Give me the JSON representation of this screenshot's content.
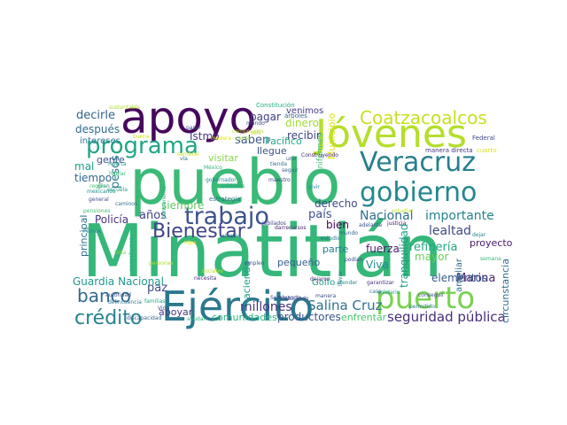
{
  "background_color": "#ffffff",
  "palette_name": "viridis",
  "words": [
    {
      "text": "Minatitlán",
      "color": "#35b779"
    },
    {
      "text": "pueblo",
      "color": "#3aba76"
    },
    {
      "text": "apoyo",
      "color": "#46085c"
    },
    {
      "text": "Jóvenes",
      "color": "#b5de2b"
    },
    {
      "text": "Ejército",
      "color": "#2a788e"
    },
    {
      "text": "puerto",
      "color": "#7ad151"
    },
    {
      "text": "programa",
      "color": "#21a585"
    },
    {
      "text": "Veracruz",
      "color": "#277f8e"
    },
    {
      "text": "gobierno",
      "color": "#24878e"
    },
    {
      "text": "Coatzacoalcos",
      "color": "#c8e020"
    },
    {
      "text": "trabajo",
      "color": "#3b528b"
    },
    {
      "text": "Bienestar",
      "color": "#414487"
    },
    {
      "text": "banco",
      "color": "#31688e"
    },
    {
      "text": "crédito",
      "color": "#26828e"
    },
    {
      "text": "seguridad pública",
      "color": "#472c7a"
    },
    {
      "text": "millones",
      "color": "#46337f"
    },
    {
      "text": "Salina Cruz",
      "color": "#2c728e"
    },
    {
      "text": "Guardia Nacional",
      "color": "#1f988b"
    },
    {
      "text": "Nacional",
      "color": "#2d708e"
    },
    {
      "text": "importante",
      "color": "#25848e"
    },
    {
      "text": "lealtad",
      "color": "#3e4a89"
    },
    {
      "text": "refinería",
      "color": "#22a884"
    },
    {
      "text": "Marina",
      "color": "#482677"
    },
    {
      "text": "pagar",
      "color": "#424086"
    },
    {
      "text": "saben",
      "color": "#38588c"
    },
    {
      "text": "recibir",
      "color": "#3f4788"
    },
    {
      "text": "venimos",
      "color": "#443983"
    },
    {
      "text": "Istmo",
      "color": "#453882"
    },
    {
      "text": "decirle",
      "color": "#33638d"
    },
    {
      "text": "después",
      "color": "#2f6c8e"
    },
    {
      "text": "intereses",
      "color": "#297b8e"
    },
    {
      "text": "gente",
      "color": "#3d4d8a"
    },
    {
      "text": "tiempo",
      "color": "#31678e"
    },
    {
      "text": "pesos",
      "color": "#287c8e"
    },
    {
      "text": "mal",
      "color": "#1fa088"
    },
    {
      "text": "siempre",
      "color": "#5ec962"
    },
    {
      "text": "Policía",
      "color": "#46327e"
    },
    {
      "text": "años",
      "color": "#414287"
    },
    {
      "text": "país",
      "color": "#3b518b"
    },
    {
      "text": "bien",
      "color": "#440154"
    },
    {
      "text": "derecho",
      "color": "#3e4989"
    },
    {
      "text": "proyecto",
      "color": "#48186a"
    },
    {
      "text": "principal",
      "color": "#2c718e"
    },
    {
      "text": "paz",
      "color": "#3d4e8a"
    },
    {
      "text": "apoyar",
      "color": "#443a83"
    },
    {
      "text": "comunidades",
      "color": "#2ab07f"
    },
    {
      "text": "productores",
      "color": "#39568c"
    },
    {
      "text": "enfrentar",
      "color": "#4ec36b"
    },
    {
      "text": "pequeño",
      "color": "#355f8d"
    },
    {
      "text": "Viva",
      "color": "#23898e"
    },
    {
      "text": "parte",
      "color": "#26818e"
    },
    {
      "text": "elementos",
      "color": "#38598c"
    },
    {
      "text": "circunstancia",
      "color": "#2d718e"
    },
    {
      "text": "ampliar",
      "color": "#2e6f8e"
    },
    {
      "text": "mayor",
      "color": "#6ccd5a"
    },
    {
      "text": "fuerza",
      "color": "#481d6f"
    },
    {
      "text": "tranquilidad",
      "color": "#1e9b8a"
    },
    {
      "text": "Golfo",
      "color": "#1fa287"
    },
    {
      "text": "visitar",
      "color": "#86d549"
    },
    {
      "text": "llegue",
      "color": "#3b528b"
    },
    {
      "text": "dinero",
      "color": "#a2da37"
    },
    {
      "text": "Pacífico",
      "color": "#21a685"
    },
    {
      "text": "haciendo",
      "color": "#1e9c89"
    },
    {
      "text": "Municipio",
      "color": "#dde318"
    },
    {
      "text": "uniformes",
      "color": "#3fbc73"
    },
    {
      "text": "Federal",
      "color": "#3f4788"
    },
    {
      "text": "manera directa",
      "color": "#453781"
    },
    {
      "text": "cuarto",
      "color": "#d8e219"
    },
    {
      "text": "estrategia",
      "color": "#2d708e"
    },
    {
      "text": "mando",
      "color": "#3c4f8a"
    },
    {
      "text": "canto",
      "color": "#9bd93c"
    },
    {
      "text": "seis",
      "color": "#b8de29"
    },
    {
      "text": "árboles",
      "color": "#355f8d"
    },
    {
      "text": "Construyendo",
      "color": "#482475"
    },
    {
      "text": "Constitución",
      "color": "#25ac82"
    },
    {
      "text": "sustentable",
      "color": "#addc30"
    },
    {
      "text": "campesinos",
      "color": "#bddf26"
    },
    {
      "text": "madera",
      "color": "#dae319"
    },
    {
      "text": "sembrar",
      "color": "#cae11f"
    },
    {
      "text": "Vida",
      "color": "#3a538b"
    },
    {
      "text": "familias",
      "color": "#22a785"
    },
    {
      "text": "delincuencia",
      "color": "#2a788e"
    },
    {
      "text": "autoridad",
      "color": "#3b528b"
    },
    {
      "text": "discapacidad",
      "color": "#33638d"
    },
    {
      "text": "personas",
      "color": "#a8db34"
    },
    {
      "text": "necesita",
      "color": "#46307e"
    },
    {
      "text": "Sembrando",
      "color": "#3f4889"
    },
    {
      "text": "empleo",
      "color": "#3a548c"
    },
    {
      "text": "hijos",
      "color": "#dde318"
    },
    {
      "text": "falta",
      "color": "#7fd34e"
    },
    {
      "text": "Huerta",
      "color": "#1f978b"
    },
    {
      "text": "conseguir",
      "color": "#3d4e8a"
    },
    {
      "text": "justicia",
      "color": "#482374"
    },
    {
      "text": "garantizar",
      "color": "#472e7c"
    },
    {
      "text": "dejar",
      "color": "#23888e"
    },
    {
      "text": "solidario",
      "color": "#1f9a8a"
    },
    {
      "text": "permitido",
      "color": "#287d8e"
    },
    {
      "text": "semana",
      "color": "#37b878"
    },
    {
      "text": "México",
      "color": "#2eb37c"
    },
    {
      "text": "soldados",
      "color": "#22a884"
    },
    {
      "text": "maestro",
      "color": "#404688"
    },
    {
      "text": "seguir",
      "color": "#34608d"
    },
    {
      "text": "vivir",
      "color": "#24878e"
    },
    {
      "text": "llevar",
      "color": "#2a768e"
    },
    {
      "text": "podían",
      "color": "#3e4989"
    },
    {
      "text": "estudio",
      "color": "#2b748e"
    },
    {
      "text": "adelante",
      "color": "#3a548c"
    },
    {
      "text": "dejaron",
      "color": "#482878"
    },
    {
      "text": "casa",
      "color": "#2b748e"
    },
    {
      "text": "atender",
      "color": "#23898e"
    },
    {
      "text": "trabajando",
      "color": "#3e4a89"
    },
    {
      "text": "jubilados",
      "color": "#404588"
    },
    {
      "text": "recursos",
      "color": "#481f70"
    },
    {
      "text": "dar",
      "color": "#482173"
    },
    {
      "text": "Pemex",
      "color": "#23898e"
    },
    {
      "text": "mexicanos",
      "color": "#218f8d"
    },
    {
      "text": "gran",
      "color": "#2a788e"
    },
    {
      "text": "vía",
      "color": "#2c718e"
    },
    {
      "text": "tienda",
      "color": "#2b758e"
    },
    {
      "text": "general",
      "color": "#3d4d8a"
    },
    {
      "text": "hablar",
      "color": "#3aba76"
    },
    {
      "text": "región",
      "color": "#4ac16d"
    },
    {
      "text": "mundo",
      "color": "#365c8d"
    },
    {
      "text": "manera",
      "color": "#3b518b"
    },
    {
      "text": "unir",
      "color": "#38588c"
    },
    {
      "text": "gobernador",
      "color": "#24868e"
    },
    {
      "text": "permanente",
      "color": "#2ab07f"
    },
    {
      "text": "pensiones",
      "color": "#40bd72"
    },
    {
      "text": "caminos",
      "color": "#2b748e"
    },
    {
      "text": "necesitamos",
      "color": "#26ad81"
    },
    {
      "text": "estudiar",
      "color": "#c0df25"
    },
    {
      "text": "escuela",
      "color": "#1f9e89"
    },
    {
      "text": "sociales",
      "color": "#bade28"
    },
    {
      "text": "apoyos",
      "color": "#1f968b"
    },
    {
      "text": "ayudar",
      "color": "#2cb17e"
    },
    {
      "text": "buena",
      "color": "#d0e11c"
    },
    {
      "text": "pasar",
      "color": "#3f4788"
    }
  ]
}
